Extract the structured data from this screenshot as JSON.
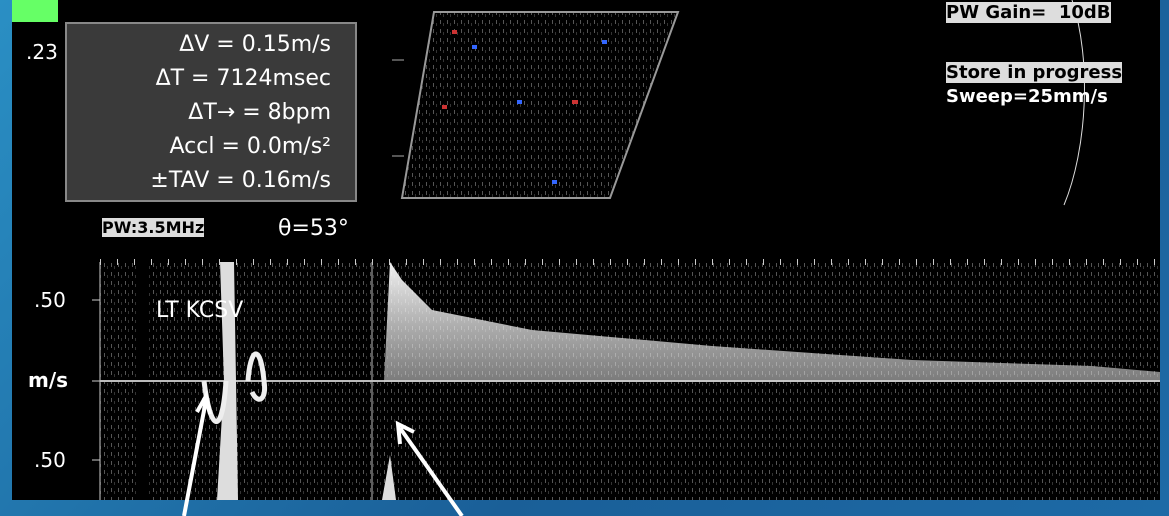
{
  "corner_label": ".23",
  "measurements": [
    "ΔV = 0.15m/s",
    "ΔT = 7124msec",
    "ΔT→ = 8bpm",
    "Accl = 0.0m/s²",
    "±TAV = 0.16m/s"
  ],
  "settings": {
    "gain": "PW Gain=  10dB",
    "status": "Store in progress",
    "sweep": "Sweep=25mm/s"
  },
  "probe": "PW:3.5MHz",
  "angle": "θ=53°",
  "scale": {
    "top": ".50",
    "unit": "m/s",
    "bottom": ".50"
  },
  "vessel_label": "LT KCSV"
}
